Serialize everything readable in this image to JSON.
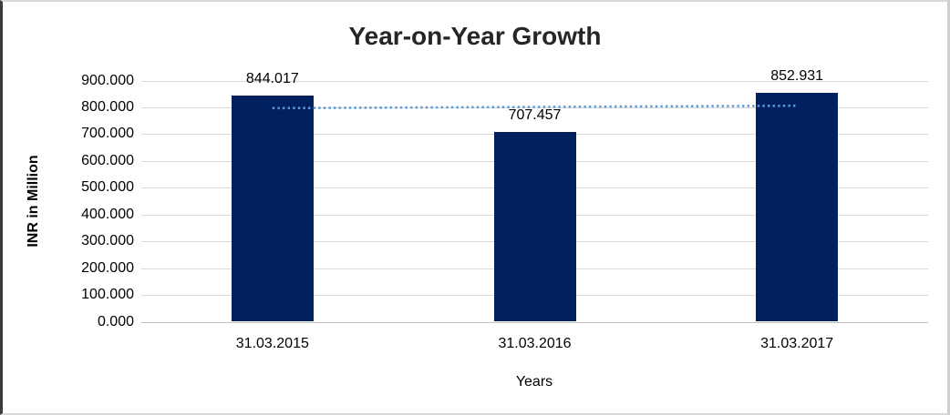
{
  "chart_data": {
    "type": "bar",
    "title": "Year-on-Year Growth",
    "categories": [
      "31.03.2015",
      "31.03.2016",
      "31.03.2017"
    ],
    "values": [
      844.017,
      707.457,
      852.931
    ],
    "value_labels": [
      "844.017",
      "707.457",
      "852.931"
    ],
    "xlabel": "Years",
    "ylabel": "INR in Million",
    "ylim": [
      0,
      900
    ],
    "y_ticks": [
      0,
      100,
      200,
      300,
      400,
      500,
      600,
      700,
      800,
      900
    ],
    "y_tick_labels": [
      "0.000",
      "100.000",
      "200.000",
      "300.000",
      "400.000",
      "500.000",
      "600.000",
      "700.000",
      "800.000",
      "900.000"
    ],
    "grid": true,
    "legend": false,
    "bar_color": "#002060",
    "gridline_color": "#d9d9d9",
    "axis_line_color": "#c0c0c0",
    "title_color": "#262626",
    "text_color": "#000000",
    "trendline": {
      "type": "linear",
      "style": "dotted",
      "color": "#5b9bd5",
      "values": [
        797.011,
        801.468,
        805.925
      ]
    }
  },
  "frame": {
    "background": "#ffffff",
    "border_left_color": "#3b3b3b",
    "border_color": "#d9d9d9"
  }
}
